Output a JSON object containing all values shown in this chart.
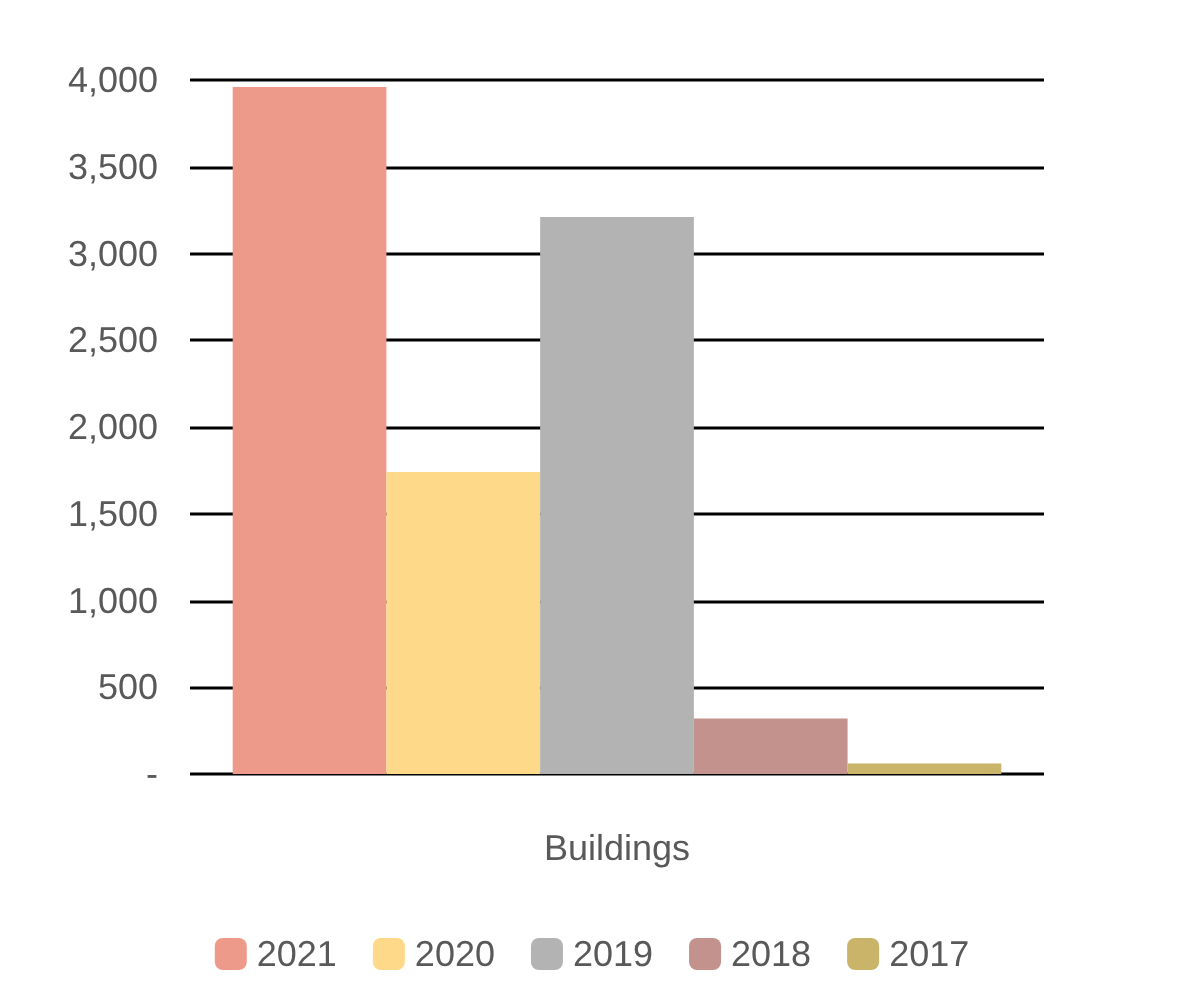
{
  "chart_data": {
    "type": "bar",
    "categories": [
      "Buildings"
    ],
    "series": [
      {
        "name": "2021",
        "color": "#ee9a8a",
        "values": [
          3960
        ]
      },
      {
        "name": "2020",
        "color": "#ffd98a",
        "values": [
          1740
        ]
      },
      {
        "name": "2019",
        "color": "#b3b3b3",
        "values": [
          3210
        ]
      },
      {
        "name": "2018",
        "color": "#c4928c",
        "values": [
          320
        ]
      },
      {
        "name": "2017",
        "color": "#c9b46a",
        "values": [
          60
        ]
      }
    ],
    "ylim": [
      0,
      4000
    ],
    "yticks": [
      {
        "value": 0,
        "label": "-"
      },
      500,
      {
        "value": 1000,
        "label": "1,000"
      },
      {
        "value": 1500,
        "label": "1,500"
      },
      {
        "value": 2000,
        "label": "2,000"
      },
      {
        "value": 2500,
        "label": "2,500"
      },
      {
        "value": 3000,
        "label": "3,000"
      },
      {
        "value": 3500,
        "label": "3,500"
      },
      {
        "value": 4000,
        "label": "4,000"
      }
    ],
    "grid": "y",
    "legend": "bottom"
  }
}
